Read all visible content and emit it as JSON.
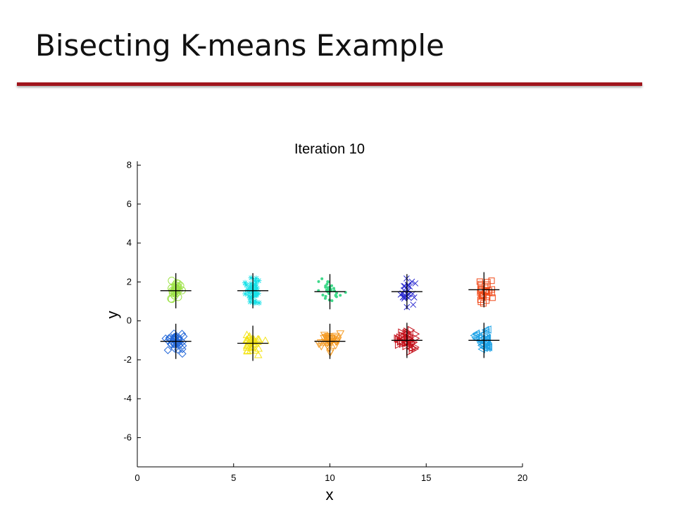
{
  "slide": {
    "title": "Bisecting K-means Example"
  },
  "chart_data": {
    "type": "scatter",
    "title": "Iteration 10",
    "xlabel": "x",
    "ylabel": "y",
    "xlim": [
      0,
      20
    ],
    "ylim": [
      -7.5,
      8.2
    ],
    "xticks": [
      0,
      5,
      10,
      15,
      20
    ],
    "yticks": [
      8,
      6,
      4,
      2,
      0,
      -2,
      -4,
      -6
    ],
    "grid": false,
    "legend": "none",
    "clusters": [
      {
        "marker": "circle",
        "color": "#9fe34a",
        "center": [
          2.0,
          1.55
        ],
        "spread": [
          0.42,
          0.42
        ],
        "count": 30
      },
      {
        "marker": "asterisk",
        "color": "#19e1e8",
        "center": [
          6.0,
          1.55
        ],
        "spread": [
          0.32,
          0.55
        ],
        "count": 40
      },
      {
        "marker": "dot",
        "color": "#3fd98a",
        "center": [
          10.0,
          1.5
        ],
        "spread": [
          0.55,
          0.5
        ],
        "count": 30
      },
      {
        "marker": "x",
        "color": "#2a2ad0",
        "center": [
          14.0,
          1.5
        ],
        "spread": [
          0.35,
          0.6
        ],
        "count": 28
      },
      {
        "marker": "square",
        "color": "#f04a1a",
        "center": [
          18.0,
          1.6
        ],
        "spread": [
          0.35,
          0.45
        ],
        "count": 30
      },
      {
        "marker": "diamond",
        "color": "#2468d8",
        "center": [
          2.0,
          -1.05
        ],
        "spread": [
          0.42,
          0.45
        ],
        "count": 35
      },
      {
        "marker": "triangle-up",
        "color": "#f4e41a",
        "center": [
          6.0,
          -1.15
        ],
        "spread": [
          0.5,
          0.45
        ],
        "count": 35
      },
      {
        "marker": "triangle-down",
        "color": "#f49a22",
        "center": [
          10.0,
          -1.05
        ],
        "spread": [
          0.4,
          0.5
        ],
        "count": 35
      },
      {
        "marker": "triangle-right",
        "color": "#c4121c",
        "center": [
          14.0,
          -1.0
        ],
        "spread": [
          0.45,
          0.5
        ],
        "count": 40
      },
      {
        "marker": "triangle-left",
        "color": "#1ea2e6",
        "center": [
          18.0,
          -1.0
        ],
        "spread": [
          0.38,
          0.45
        ],
        "count": 35
      }
    ],
    "centroids": [
      [
        2.0,
        1.55
      ],
      [
        6.0,
        1.55
      ],
      [
        10.0,
        1.5
      ],
      [
        14.0,
        1.5
      ],
      [
        18.0,
        1.6
      ],
      [
        2.0,
        -1.05
      ],
      [
        6.0,
        -1.15
      ],
      [
        10.0,
        -1.05
      ],
      [
        14.0,
        -1.0
      ],
      [
        18.0,
        -1.0
      ]
    ],
    "centroid_marker": "plus",
    "centroid_color": "#000000"
  }
}
